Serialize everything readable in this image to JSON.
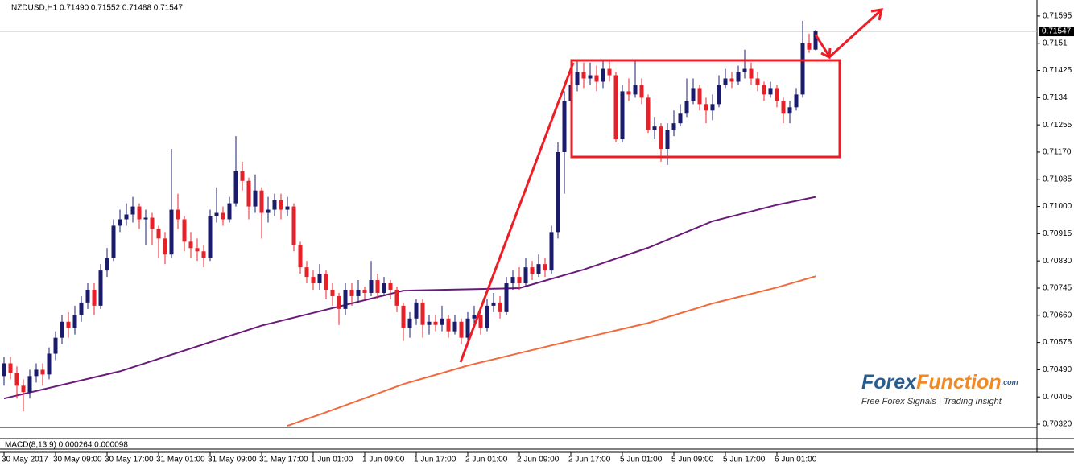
{
  "chart_data": {
    "type": "candlestick",
    "header": "NZDUSD,H1  0.71490 0.71552 0.71488 0.71547",
    "macd_label": "MACD(8,13,9) 0.000264 0.000098",
    "watermark": {
      "brand": "Forex",
      "brand2": "Function",
      "suffix": ".com",
      "tagline": "Free Forex Signals | Trading Insight"
    },
    "up_color": "#1b1b6b",
    "down_color": "#e8202a",
    "current_price": 0.71547,
    "ylim": [
      0.7162,
      0.7031
    ],
    "yticks": [
      0.71595,
      0.7151,
      0.71425,
      0.7134,
      0.71255,
      {
        "value": 0.7117,
        "label": "0.71170"
      },
      0.71085,
      {
        "value": 0.71,
        "label": "0.71000"
      },
      0.70915,
      {
        "value": 0.7083,
        "label": "0.70830"
      },
      0.70745,
      {
        "value": 0.7066,
        "label": "0.70660"
      },
      0.70575,
      {
        "value": 0.7049,
        "label": "0.70490"
      },
      0.70405,
      {
        "value": 0.7032,
        "label": "0.70320"
      }
    ],
    "categories": [
      "30 May 2017",
      null,
      null,
      null,
      null,
      null,
      null,
      null,
      "30 May 09:00",
      null,
      null,
      null,
      null,
      null,
      null,
      null,
      "30 May 17:00",
      null,
      null,
      null,
      null,
      null,
      null,
      null,
      "31 May 01:00",
      null,
      null,
      null,
      null,
      null,
      null,
      null,
      "31 May 09:00",
      null,
      null,
      null,
      null,
      null,
      null,
      null,
      "31 May 17:00",
      null,
      null,
      null,
      null,
      null,
      null,
      null,
      "1 Jun 01:00",
      null,
      null,
      null,
      null,
      null,
      null,
      null,
      "1 Jun 09:00",
      null,
      null,
      null,
      null,
      null,
      null,
      null,
      "1 Jun 17:00",
      null,
      null,
      null,
      null,
      null,
      null,
      null,
      "2 Jun 01:00",
      null,
      null,
      null,
      null,
      null,
      null,
      null,
      "2 Jun 09:00",
      null,
      null,
      null,
      null,
      null,
      null,
      null,
      "2 Jun 17:00",
      null,
      null,
      null,
      null,
      null,
      null,
      null,
      "5 Jun 01:00",
      null,
      null,
      null,
      null,
      null,
      null,
      null,
      "5 Jun 09:00",
      null,
      null,
      null,
      null,
      null,
      null,
      null,
      "5 Jun 17:00",
      null,
      null,
      null,
      null,
      null,
      null,
      null,
      "6 Jun 01:00",
      null,
      null,
      null,
      null,
      null,
      null
    ],
    "ohlc": [
      [
        0.7047,
        0.7053,
        0.7044,
        0.7051
      ],
      [
        0.7051,
        0.7053,
        0.7046,
        0.7048
      ],
      [
        0.7048,
        0.705,
        0.704,
        0.7044
      ],
      [
        0.7044,
        0.7046,
        0.7036,
        0.7042
      ],
      [
        0.7042,
        0.7049,
        0.704,
        0.7047
      ],
      [
        0.7047,
        0.7051,
        0.7045,
        0.7049
      ],
      [
        0.7049,
        0.7051,
        0.7044,
        0.70475
      ],
      [
        0.70475,
        0.7056,
        0.7046,
        0.7054
      ],
      [
        0.7054,
        0.7061,
        0.7052,
        0.7059
      ],
      [
        0.7059,
        0.7066,
        0.7057,
        0.7064
      ],
      [
        0.7064,
        0.7067,
        0.7059,
        0.7062
      ],
      [
        0.7062,
        0.7069,
        0.706,
        0.7066
      ],
      [
        0.7066,
        0.7072,
        0.7064,
        0.707
      ],
      [
        0.707,
        0.7076,
        0.7068,
        0.7074
      ],
      [
        0.7074,
        0.7076,
        0.7066,
        0.7069
      ],
      [
        0.7069,
        0.7082,
        0.7068,
        0.708
      ],
      [
        0.708,
        0.7087,
        0.7078,
        0.7084
      ],
      [
        0.7084,
        0.7096,
        0.7083,
        0.7094
      ],
      [
        0.7094,
        0.7099,
        0.7092,
        0.7096
      ],
      [
        0.7096,
        0.7101,
        0.7094,
        0.70975
      ],
      [
        0.70975,
        0.7103,
        0.7095,
        0.71
      ],
      [
        0.71,
        0.7101,
        0.7093,
        0.7096
      ],
      [
        0.7096,
        0.7099,
        0.7088,
        0.70965
      ],
      [
        0.70965,
        0.7098,
        0.7088,
        0.7093
      ],
      [
        0.7093,
        0.7094,
        0.7084,
        0.709
      ],
      [
        0.709,
        0.7092,
        0.7082,
        0.7085
      ],
      [
        0.7085,
        0.7118,
        0.7084,
        0.7099
      ],
      [
        0.7099,
        0.7104,
        0.7093,
        0.7096
      ],
      [
        0.7096,
        0.7097,
        0.7086,
        0.7089
      ],
      [
        0.7089,
        0.7092,
        0.7084,
        0.7087
      ],
      [
        0.7087,
        0.709,
        0.7083,
        0.7086
      ],
      [
        0.7086,
        0.7088,
        0.7081,
        0.7084
      ],
      [
        0.7084,
        0.7099,
        0.7083,
        0.7097
      ],
      [
        0.7097,
        0.7106,
        0.7095,
        0.7098
      ],
      [
        0.7098,
        0.71,
        0.7094,
        0.7096
      ],
      [
        0.7096,
        0.7103,
        0.7095,
        0.7101
      ],
      [
        0.7101,
        0.7122,
        0.71,
        0.7111
      ],
      [
        0.7111,
        0.7114,
        0.7105,
        0.7108
      ],
      [
        0.7108,
        0.7109,
        0.7096,
        0.71
      ],
      [
        0.71,
        0.711,
        0.7098,
        0.7105
      ],
      [
        0.7105,
        0.7106,
        0.709,
        0.7098
      ],
      [
        0.7098,
        0.7103,
        0.7095,
        0.7099
      ],
      [
        0.7099,
        0.7104,
        0.7097,
        0.7102
      ],
      [
        0.7102,
        0.7104,
        0.7096,
        0.7099
      ],
      [
        0.7099,
        0.7103,
        0.7097,
        0.71
      ],
      [
        0.71,
        0.7101,
        0.7086,
        0.7088
      ],
      [
        0.7088,
        0.7089,
        0.7079,
        0.7081
      ],
      [
        0.7081,
        0.7083,
        0.7076,
        0.7078
      ],
      [
        0.7078,
        0.708,
        0.7074,
        0.7076
      ],
      [
        0.7076,
        0.7082,
        0.7074,
        0.7079
      ],
      [
        0.7079,
        0.708,
        0.7071,
        0.7074
      ],
      [
        0.7074,
        0.7076,
        0.7069,
        0.7072
      ],
      [
        0.7072,
        0.7073,
        0.7063,
        0.7068
      ],
      [
        0.7068,
        0.7076,
        0.7066,
        0.7074
      ],
      [
        0.7074,
        0.7076,
        0.7069,
        0.7072
      ],
      [
        0.7072,
        0.7077,
        0.707,
        0.7074
      ],
      [
        0.7074,
        0.7075,
        0.7071,
        0.7073
      ],
      [
        0.7073,
        0.7083,
        0.7072,
        0.7077
      ],
      [
        0.7077,
        0.7079,
        0.7071,
        0.7073
      ],
      [
        0.7073,
        0.7078,
        0.7072,
        0.7076
      ],
      [
        0.7076,
        0.7077,
        0.7071,
        0.7074
      ],
      [
        0.7074,
        0.7075,
        0.7067,
        0.7069
      ],
      [
        0.7069,
        0.707,
        0.7058,
        0.7062
      ],
      [
        0.7062,
        0.7067,
        0.7059,
        0.7065
      ],
      [
        0.7065,
        0.7071,
        0.7063,
        0.707
      ],
      [
        0.707,
        0.7071,
        0.7059,
        0.7063
      ],
      [
        0.7063,
        0.7066,
        0.706,
        0.7064
      ],
      [
        0.7064,
        0.7066,
        0.7061,
        0.7063
      ],
      [
        0.7063,
        0.7069,
        0.7061,
        0.7065
      ],
      [
        0.7065,
        0.7066,
        0.7059,
        0.7061
      ],
      [
        0.7061,
        0.7066,
        0.706,
        0.7064
      ],
      [
        0.7064,
        0.7065,
        0.7057,
        0.7059
      ],
      [
        0.7059,
        0.7067,
        0.7058,
        0.7065
      ],
      [
        0.7065,
        0.7069,
        0.7063,
        0.7066
      ],
      [
        0.7066,
        0.7067,
        0.706,
        0.7062
      ],
      [
        0.7062,
        0.7071,
        0.7061,
        0.7069
      ],
      [
        0.7069,
        0.7073,
        0.7067,
        0.707
      ],
      [
        0.707,
        0.7072,
        0.7065,
        0.7067
      ],
      [
        0.7067,
        0.7078,
        0.7066,
        0.7076
      ],
      [
        0.7076,
        0.708,
        0.7074,
        0.7078
      ],
      [
        0.7078,
        0.7081,
        0.7074,
        0.7076
      ],
      [
        0.7076,
        0.7084,
        0.7075,
        0.7081
      ],
      [
        0.7081,
        0.7083,
        0.7077,
        0.7079
      ],
      [
        0.7079,
        0.7085,
        0.7078,
        0.7082
      ],
      [
        0.7082,
        0.7084,
        0.7078,
        0.708
      ],
      [
        0.708,
        0.7094,
        0.7079,
        0.7092
      ],
      [
        0.7092,
        0.712,
        0.709,
        0.7117
      ],
      [
        0.7117,
        0.7136,
        0.7104,
        0.7133
      ],
      [
        0.7133,
        0.7143,
        0.713,
        0.7138
      ],
      [
        0.7138,
        0.7146,
        0.7136,
        0.7142
      ],
      [
        0.7142,
        0.7145,
        0.7137,
        0.714
      ],
      [
        0.714,
        0.7145,
        0.7138,
        0.7141
      ],
      [
        0.7141,
        0.7144,
        0.7136,
        0.7139
      ],
      [
        0.7139,
        0.7146,
        0.7137,
        0.7143
      ],
      [
        0.7143,
        0.7146,
        0.7139,
        0.7141
      ],
      [
        0.7141,
        0.7142,
        0.712,
        0.7121
      ],
      [
        0.7121,
        0.7138,
        0.712,
        0.7136
      ],
      [
        0.7136,
        0.714,
        0.7133,
        0.7135
      ],
      [
        0.7135,
        0.7146,
        0.7134,
        0.7138
      ],
      [
        0.7138,
        0.714,
        0.7132,
        0.7134
      ],
      [
        0.7134,
        0.7135,
        0.7123,
        0.7124
      ],
      [
        0.7124,
        0.7128,
        0.7121,
        0.7125
      ],
      [
        0.7125,
        0.7126,
        0.7114,
        0.7118
      ],
      [
        0.7118,
        0.7126,
        0.7113,
        0.7124
      ],
      [
        0.7124,
        0.713,
        0.7122,
        0.7126
      ],
      [
        0.7126,
        0.7132,
        0.7125,
        0.7129
      ],
      [
        0.7129,
        0.714,
        0.7128,
        0.7133
      ],
      [
        0.7133,
        0.714,
        0.7132,
        0.7137
      ],
      [
        0.7137,
        0.7138,
        0.713,
        0.7132
      ],
      [
        0.7132,
        0.7134,
        0.7126,
        0.713
      ],
      [
        0.713,
        0.7135,
        0.7127,
        0.7132
      ],
      [
        0.7132,
        0.7141,
        0.7131,
        0.7138
      ],
      [
        0.7138,
        0.7143,
        0.7137,
        0.714
      ],
      [
        0.714,
        0.7142,
        0.7137,
        0.7139
      ],
      [
        0.7139,
        0.7144,
        0.7138,
        0.7142
      ],
      [
        0.7142,
        0.7149,
        0.714,
        0.7143
      ],
      [
        0.7143,
        0.7145,
        0.7138,
        0.714
      ],
      [
        0.714,
        0.7142,
        0.7136,
        0.7138
      ],
      [
        0.7138,
        0.7139,
        0.7133,
        0.7135
      ],
      [
        0.7135,
        0.7139,
        0.7134,
        0.7137
      ],
      [
        0.7137,
        0.7138,
        0.7131,
        0.7133
      ],
      [
        0.7133,
        0.7134,
        0.7126,
        0.7129
      ],
      [
        0.7129,
        0.7133,
        0.7126,
        0.7131
      ],
      [
        0.7131,
        0.7137,
        0.713,
        0.7135
      ],
      [
        0.7135,
        0.7158,
        0.7134,
        0.7151
      ],
      [
        0.7151,
        0.7154,
        0.7148,
        0.7149
      ],
      [
        0.7149,
        0.71552,
        0.71488,
        0.71547
      ]
    ],
    "lines": [
      {
        "color": "#6a1b7a",
        "x": [
          0,
          18,
          40,
          62,
          80,
          90,
          100,
          110,
          120,
          126
        ],
        "values": [
          0.704,
          0.70485,
          0.70628,
          0.70737,
          0.70745,
          0.70803,
          0.70871,
          0.70954,
          0.71005,
          0.7103
        ]
      },
      {
        "color": "#f26a3c",
        "x": [
          44,
          50,
          62,
          72,
          85,
          100,
          110,
          120,
          126
        ],
        "values": [
          0.70315,
          0.70357,
          0.70445,
          0.70503,
          0.70566,
          0.70636,
          0.70697,
          0.70747,
          0.70782
        ]
      }
    ]
  }
}
